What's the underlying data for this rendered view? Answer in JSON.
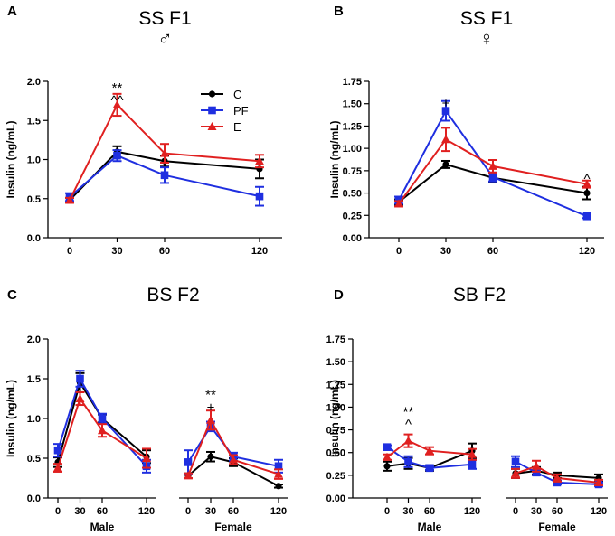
{
  "colors": {
    "C": "#000000",
    "PF": "#1f2fe0",
    "E": "#e02020"
  },
  "legend": [
    {
      "key": "C",
      "label": "C",
      "marker": "circle"
    },
    {
      "key": "PF",
      "label": "PF",
      "marker": "square"
    },
    {
      "key": "E",
      "label": "E",
      "marker": "triangle"
    }
  ],
  "chart_data": [
    {
      "id": "A",
      "type": "line",
      "panel_label": "A",
      "title": "SS F1",
      "subtitle": "♂",
      "ylabel": "Insulin (ng/mL)",
      "xlabel": "",
      "ylim": [
        0,
        2.0
      ],
      "yticks": [
        "0.0",
        "0.5",
        "1.0",
        "1.5",
        "2.0"
      ],
      "yticks_values": [
        0,
        0.5,
        1.0,
        1.5,
        2.0
      ],
      "groups": [
        {
          "label": "",
          "x": [
            0,
            30,
            60,
            120
          ]
        }
      ],
      "show_legend": true,
      "series": [
        {
          "name": "C",
          "groups": [
            {
              "values": [
                0.48,
                1.1,
                0.98,
                0.88
              ],
              "errors": [
                0.03,
                0.07,
                0.07,
                0.12
              ]
            }
          ]
        },
        {
          "name": "PF",
          "groups": [
            {
              "values": [
                0.52,
                1.05,
                0.8,
                0.53
              ],
              "errors": [
                0.05,
                0.07,
                0.1,
                0.12
              ]
            }
          ]
        },
        {
          "name": "E",
          "groups": [
            {
              "values": [
                0.48,
                1.7,
                1.08,
                0.98
              ],
              "errors": [
                0.03,
                0.14,
                0.12,
                0.08
              ]
            }
          ]
        }
      ],
      "annotations": [
        {
          "x": 30,
          "group": 0,
          "lines": [
            "**",
            "^^"
          ],
          "y": 1.84
        }
      ]
    },
    {
      "id": "B",
      "type": "line",
      "panel_label": "B",
      "title": "SS F1",
      "subtitle": "♀",
      "ylabel": "Insulin (ng/mL)",
      "xlabel": "",
      "ylim": [
        0,
        1.75
      ],
      "yticks": [
        "0.00",
        "0.25",
        "0.50",
        "0.75",
        "1.00",
        "1.25",
        "1.50",
        "1.75"
      ],
      "yticks_values": [
        0,
        0.25,
        0.5,
        0.75,
        1.0,
        1.25,
        1.5,
        1.75
      ],
      "groups": [
        {
          "label": "",
          "x": [
            0,
            30,
            60,
            120
          ]
        }
      ],
      "show_legend": false,
      "series": [
        {
          "name": "C",
          "groups": [
            {
              "values": [
                0.4,
                0.82,
                0.67,
                0.5
              ],
              "errors": [
                0.03,
                0.04,
                0.05,
                0.07
              ]
            }
          ]
        },
        {
          "name": "PF",
          "groups": [
            {
              "values": [
                0.42,
                1.42,
                0.68,
                0.24
              ],
              "errors": [
                0.04,
                0.11,
                0.05,
                0.02
              ]
            }
          ]
        },
        {
          "name": "E",
          "groups": [
            {
              "values": [
                0.38,
                1.1,
                0.8,
                0.6
              ],
              "errors": [
                0.03,
                0.13,
                0.07,
                0.04
              ]
            }
          ]
        }
      ],
      "annotations": [
        {
          "x": 30,
          "group": 0,
          "lines": [
            "+"
          ],
          "y": 1.58
        },
        {
          "x": 120,
          "group": 0,
          "lines": [
            "^"
          ],
          "y": 0.73
        }
      ]
    },
    {
      "id": "C",
      "type": "line",
      "panel_label": "C",
      "title": "BS F2",
      "subtitle": "",
      "ylabel": "Insulin (ng/mL)",
      "xlabel": "",
      "ylim": [
        0,
        2.0
      ],
      "yticks": [
        "0.0",
        "0.5",
        "1.0",
        "1.5",
        "2.0"
      ],
      "yticks_values": [
        0,
        0.5,
        1.0,
        1.5,
        2.0
      ],
      "groups": [
        {
          "label": "Male",
          "x": [
            0,
            30,
            60,
            120
          ]
        },
        {
          "label": "Female",
          "x": [
            0,
            30,
            60,
            120
          ]
        }
      ],
      "show_legend": false,
      "series": [
        {
          "name": "C",
          "groups": [
            {
              "values": [
                0.45,
                1.45,
                1.0,
                0.52
              ],
              "errors": [
                0.06,
                0.12,
                0.05,
                0.08
              ]
            },
            {
              "values": [
                0.28,
                0.52,
                0.45,
                0.15
              ],
              "errors": [
                0.03,
                0.06,
                0.05,
                0.02
              ]
            }
          ]
        },
        {
          "name": "PF",
          "groups": [
            {
              "values": [
                0.6,
                1.5,
                1.0,
                0.4
              ],
              "errors": [
                0.08,
                0.1,
                0.06,
                0.08
              ]
            },
            {
              "values": [
                0.45,
                0.9,
                0.52,
                0.4
              ],
              "errors": [
                0.15,
                0.06,
                0.05,
                0.08
              ]
            }
          ]
        },
        {
          "name": "E",
          "groups": [
            {
              "values": [
                0.38,
                1.25,
                0.85,
                0.5
              ],
              "errors": [
                0.05,
                0.08,
                0.08,
                0.12
              ]
            },
            {
              "values": [
                0.28,
                0.98,
                0.48,
                0.3
              ],
              "errors": [
                0.03,
                0.12,
                0.06,
                0.06
              ]
            }
          ]
        }
      ],
      "annotations": [
        {
          "x": 30,
          "group": 1,
          "lines": [
            "**",
            "+"
          ],
          "y": 1.22
        }
      ]
    },
    {
      "id": "D",
      "type": "line",
      "panel_label": "D",
      "title": "SB F2",
      "subtitle": "",
      "ylabel": "Insulin (ng/mL)",
      "xlabel": "",
      "ylim": [
        0,
        1.75
      ],
      "yticks": [
        "0.00",
        "0.25",
        "0.50",
        "0.75",
        "1.00",
        "1.25",
        "1.50",
        "1.75"
      ],
      "yticks_values": [
        0,
        0.25,
        0.5,
        0.75,
        1.0,
        1.25,
        1.5,
        1.75
      ],
      "groups": [
        {
          "label": "Male",
          "x": [
            0,
            30,
            60,
            120
          ]
        },
        {
          "label": "Female",
          "x": [
            0,
            30,
            60,
            120
          ]
        }
      ],
      "show_legend": false,
      "series": [
        {
          "name": "C",
          "groups": [
            {
              "values": [
                0.35,
                0.38,
                0.33,
                0.52
              ],
              "errors": [
                0.05,
                0.06,
                0.03,
                0.08
              ]
            },
            {
              "values": [
                0.27,
                0.3,
                0.25,
                0.22
              ],
              "errors": [
                0.05,
                0.04,
                0.03,
                0.04
              ]
            }
          ]
        },
        {
          "name": "PF",
          "groups": [
            {
              "values": [
                0.56,
                0.4,
                0.33,
                0.37
              ],
              "errors": [
                0.02,
                0.06,
                0.02,
                0.05
              ]
            },
            {
              "values": [
                0.4,
                0.28,
                0.17,
                0.15
              ],
              "errors": [
                0.06,
                0.03,
                0.02,
                0.02
              ]
            }
          ]
        },
        {
          "name": "E",
          "groups": [
            {
              "values": [
                0.45,
                0.63,
                0.52,
                0.48
              ],
              "errors": [
                0.03,
                0.07,
                0.04,
                0.06
              ]
            },
            {
              "values": [
                0.27,
                0.35,
                0.22,
                0.17
              ],
              "errors": [
                0.05,
                0.06,
                0.04,
                0.03
              ]
            }
          ]
        }
      ],
      "annotations": [
        {
          "x": 30,
          "group": 0,
          "lines": [
            "**",
            "^"
          ],
          "y": 0.88
        }
      ]
    }
  ]
}
